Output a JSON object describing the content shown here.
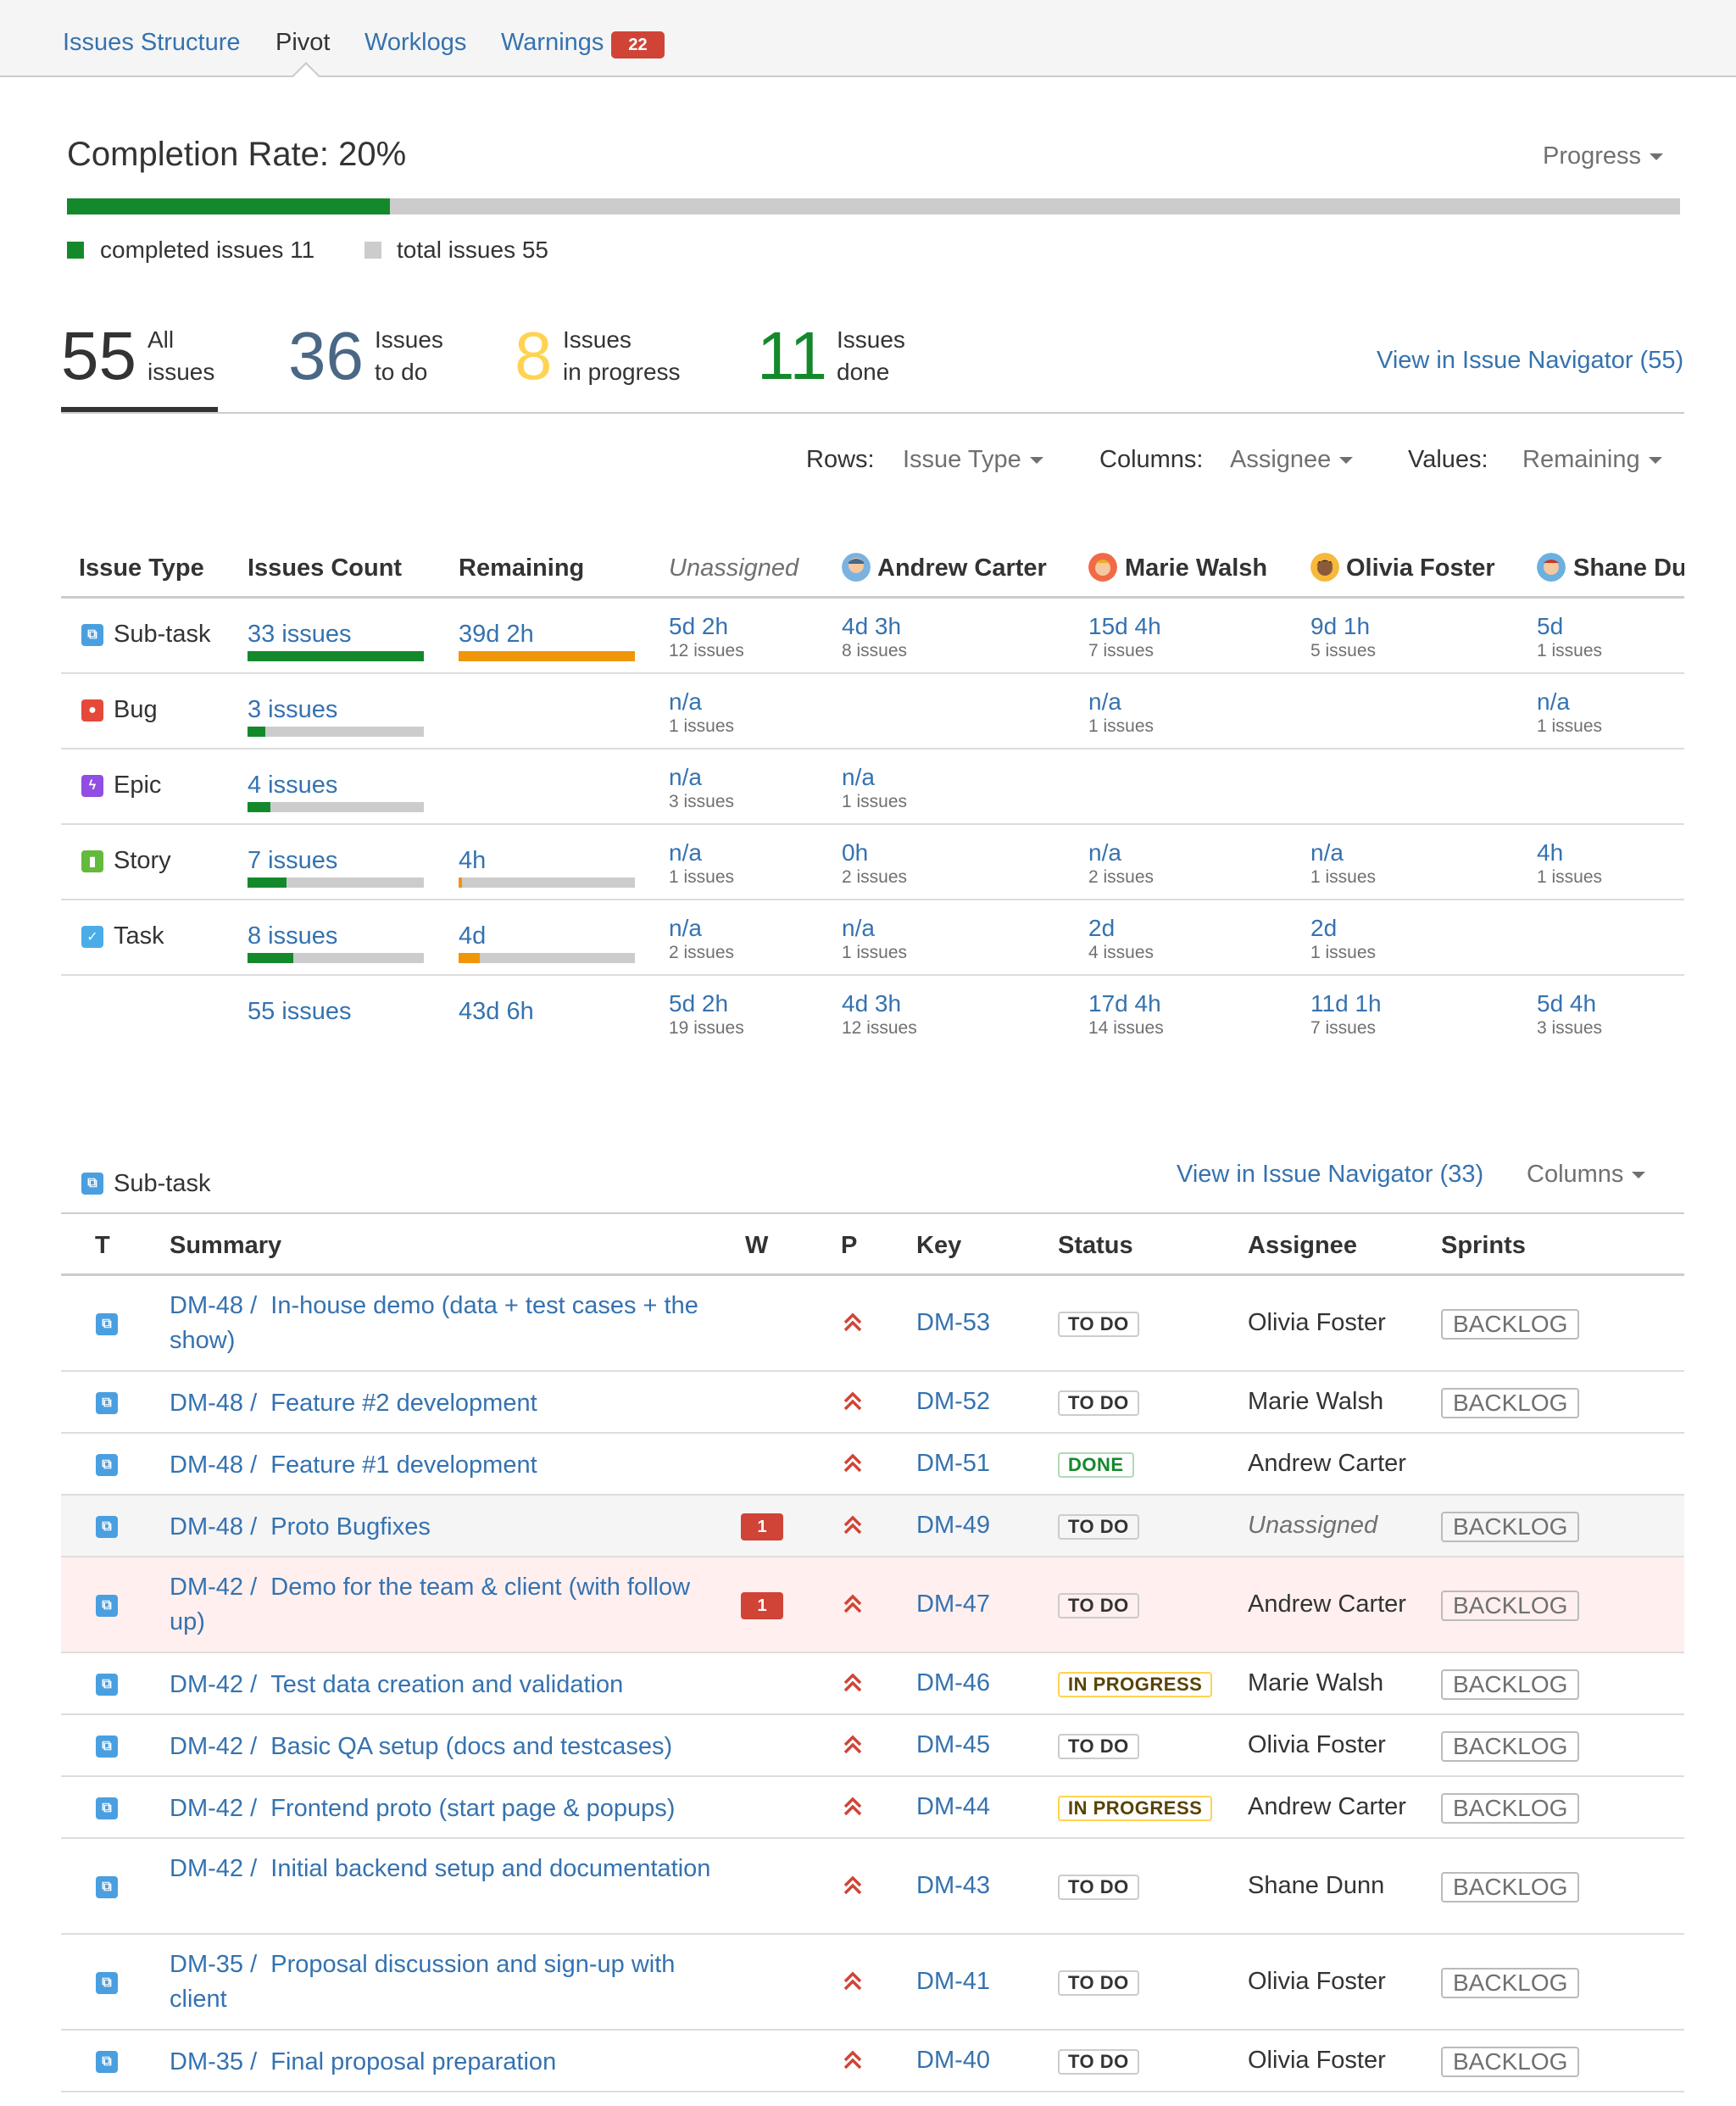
{
  "nav": {
    "tabs": [
      "Issues Structure",
      "Pivot",
      "Worklogs",
      "Warnings"
    ],
    "warnings_count": "22"
  },
  "completion": {
    "title": "Completion Rate: 20%",
    "rate": 0.2,
    "dropdown": "Progress",
    "completed_label": "completed issues 11",
    "total_label": "total issues 55"
  },
  "stats": {
    "all": {
      "num": "55",
      "line1": "All",
      "line2": "issues"
    },
    "todo": {
      "num": "36",
      "line1": "Issues",
      "line2": "to do"
    },
    "progress": {
      "num": "8",
      "line1": "Issues",
      "line2": "in progress"
    },
    "done": {
      "num": "11",
      "line1": "Issues",
      "line2": "done"
    },
    "navigator_link": "View in Issue Navigator (55)"
  },
  "controls": {
    "rows_label": "Rows:",
    "rows_value": "Issue Type",
    "columns_label": "Columns:",
    "columns_value": "Assignee",
    "values_label": "Values:",
    "values_value": "Remaining"
  },
  "pivot": {
    "headers": [
      "Issue Type",
      "Issues Count",
      "Remaining",
      "Unassigned",
      "Andrew Carter",
      "Marie Walsh",
      "Olivia Foster",
      "Shane Du"
    ],
    "rows": [
      {
        "type": "Sub-task",
        "count": "33 issues",
        "count_frac": 1.0,
        "remaining": "39d 2h",
        "rem_frac": 1.0,
        "cells": [
          [
            "5d 2h",
            "12 issues"
          ],
          [
            "4d 3h",
            "8 issues"
          ],
          [
            "15d 4h",
            "7 issues"
          ],
          [
            "9d 1h",
            "5 issues"
          ],
          [
            "5d",
            "1 issues"
          ]
        ]
      },
      {
        "type": "Bug",
        "count": "3 issues",
        "count_frac": 0.1,
        "remaining": "",
        "rem_frac": null,
        "cells": [
          [
            "n/a",
            "1 issues"
          ],
          [
            "",
            ""
          ],
          [
            "n/a",
            "1 issues"
          ],
          [
            "",
            ""
          ],
          [
            "n/a",
            "1 issues"
          ]
        ]
      },
      {
        "type": "Epic",
        "count": "4 issues",
        "count_frac": 0.13,
        "remaining": "",
        "rem_frac": null,
        "cells": [
          [
            "n/a",
            "3 issues"
          ],
          [
            "n/a",
            "1 issues"
          ],
          [
            "",
            ""
          ],
          [
            "",
            ""
          ],
          [
            "",
            ""
          ]
        ]
      },
      {
        "type": "Story",
        "count": "7 issues",
        "count_frac": 0.22,
        "remaining": "4h",
        "rem_frac": 0.02,
        "cells": [
          [
            "n/a",
            "1 issues"
          ],
          [
            "0h",
            "2 issues"
          ],
          [
            "n/a",
            "2 issues"
          ],
          [
            "n/a",
            "1 issues"
          ],
          [
            "4h",
            "1 issues"
          ]
        ]
      },
      {
        "type": "Task",
        "count": "8 issues",
        "count_frac": 0.26,
        "remaining": "4d",
        "rem_frac": 0.12,
        "cells": [
          [
            "n/a",
            "2 issues"
          ],
          [
            "n/a",
            "1 issues"
          ],
          [
            "2d",
            "4 issues"
          ],
          [
            "2d",
            "1 issues"
          ],
          [
            "",
            ""
          ]
        ]
      }
    ],
    "totals": {
      "count": "55 issues",
      "remaining": "43d 6h",
      "cells": [
        [
          "5d 2h",
          "19 issues"
        ],
        [
          "4d 3h",
          "12 issues"
        ],
        [
          "17d 4h",
          "14 issues"
        ],
        [
          "11d 1h",
          "7 issues"
        ],
        [
          "5d 4h",
          "3 issues"
        ]
      ]
    }
  },
  "list": {
    "group": "Sub-task",
    "navigator_link": "View in Issue Navigator (33)",
    "columns_dropdown": "Columns",
    "headers": [
      "T",
      "Summary",
      "W",
      "P",
      "Key",
      "Status",
      "Assignee",
      "Sprints"
    ],
    "rows": [
      {
        "parent": "DM-48 /",
        "summary": "In-house demo (data + test cases + the show)",
        "warn": "",
        "key": "DM-53",
        "status": "TO DO",
        "assignee": "Olivia Foster",
        "sprint": "BACKLOG"
      },
      {
        "parent": "DM-48 /",
        "summary": "Feature #2 development",
        "warn": "",
        "key": "DM-52",
        "status": "TO DO",
        "assignee": "Marie Walsh",
        "sprint": "BACKLOG"
      },
      {
        "parent": "DM-48 /",
        "summary": "Feature #1 development",
        "warn": "",
        "key": "DM-51",
        "status": "DONE",
        "assignee": "Andrew Carter",
        "sprint": ""
      },
      {
        "parent": "DM-48 /",
        "summary": "Proto Bugfixes",
        "warn": "1",
        "key": "DM-49",
        "status": "TO DO",
        "assignee": "Unassigned",
        "sprint": "BACKLOG"
      },
      {
        "parent": "DM-42 /",
        "summary": "Demo for the team & client (with follow up)",
        "warn": "1",
        "key": "DM-47",
        "status": "TO DO",
        "assignee": "Andrew Carter",
        "sprint": "BACKLOG"
      },
      {
        "parent": "DM-42 /",
        "summary": "Test data creation and validation",
        "warn": "",
        "key": "DM-46",
        "status": "IN PROGRESS",
        "assignee": "Marie Walsh",
        "sprint": "BACKLOG"
      },
      {
        "parent": "DM-42 /",
        "summary": "Basic QA setup (docs and testcases)",
        "warn": "",
        "key": "DM-45",
        "status": "TO DO",
        "assignee": "Olivia Foster",
        "sprint": "BACKLOG"
      },
      {
        "parent": "DM-42 /",
        "summary": "Frontend proto (start page & popups)",
        "warn": "",
        "key": "DM-44",
        "status": "IN PROGRESS",
        "assignee": "Andrew Carter",
        "sprint": "BACKLOG"
      },
      {
        "parent": "DM-42 /",
        "summary": "Initial backend setup and documentation",
        "warn": "",
        "key": "DM-43",
        "status": "TO DO",
        "assignee": "Shane Dunn",
        "sprint": "BACKLOG"
      },
      {
        "parent": "DM-35 /",
        "summary": "Proposal discussion and sign-up with client",
        "warn": "",
        "key": "DM-41",
        "status": "TO DO",
        "assignee": "Olivia Foster",
        "sprint": "BACKLOG"
      },
      {
        "parent": "DM-35 /",
        "summary": "Final proposal preparation",
        "warn": "",
        "key": "DM-40",
        "status": "TO DO",
        "assignee": "Olivia Foster",
        "sprint": "BACKLOG"
      }
    ]
  },
  "colors": {
    "green": "#14892c",
    "orange": "#f0960a",
    "red": "#d04437",
    "link": "#3572b0",
    "gray": "#cccccc"
  }
}
